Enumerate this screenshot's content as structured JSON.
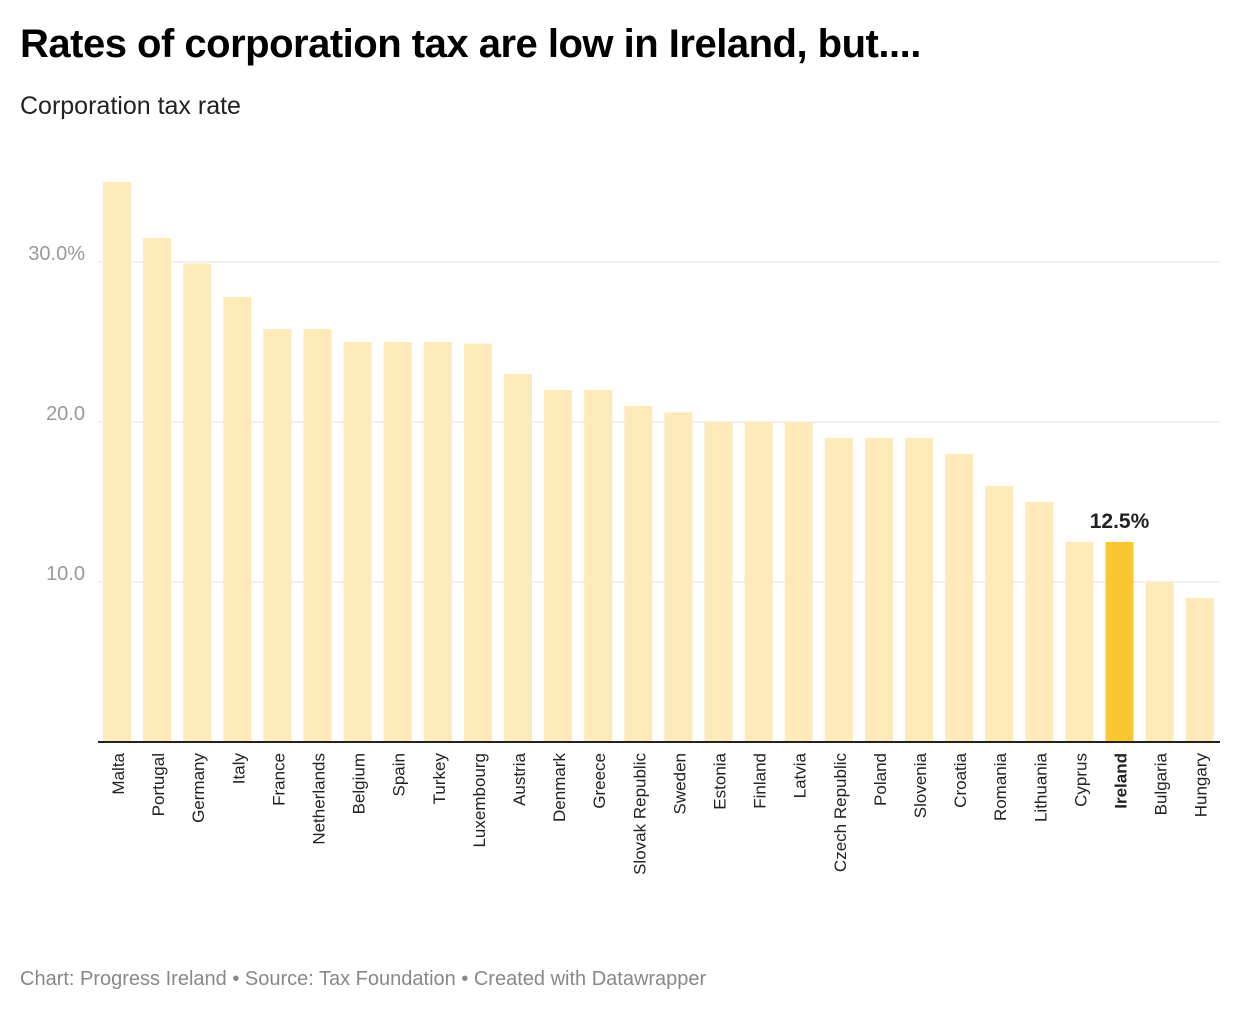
{
  "chart_data": {
    "type": "bar",
    "title": "Rates of corporation tax are low in Ireland, but....",
    "subtitle": "Corporation tax rate",
    "footer": "Chart: Progress Ireland • Source: Tax Foundation • Created with Datawrapper",
    "categories": [
      "Malta",
      "Portugal",
      "Germany",
      "Italy",
      "France",
      "Netherlands",
      "Belgium",
      "Spain",
      "Turkey",
      "Luxembourg",
      "Austria",
      "Denmark",
      "Greece",
      "Slovak Republic",
      "Sweden",
      "Estonia",
      "Finland",
      "Latvia",
      "Czech Republic",
      "Poland",
      "Slovenia",
      "Croatia",
      "Romania",
      "Lithuania",
      "Cyprus",
      "Ireland",
      "Bulgaria",
      "Hungary"
    ],
    "values": [
      35,
      31.5,
      29.9,
      27.8,
      25.8,
      25.8,
      25,
      25,
      25,
      24.9,
      23,
      22,
      22,
      21,
      20.6,
      20,
      20,
      20,
      19,
      19,
      19,
      18,
      16,
      15,
      12.5,
      12.5,
      10,
      9
    ],
    "highlight": "Ireland",
    "highlight_label": "12.5%",
    "yticks": [
      {
        "value": 10,
        "label": "10.0"
      },
      {
        "value": 20,
        "label": "20.0"
      },
      {
        "value": 30,
        "label": "30.0%"
      }
    ],
    "ylim": [
      0,
      37.5
    ],
    "xlabel": "",
    "ylabel": "",
    "grid": true,
    "colors": {
      "bar": "#fee9b8",
      "highlight": "#fcc631",
      "grid": "#e0e0e0",
      "tick": "#999999"
    }
  }
}
